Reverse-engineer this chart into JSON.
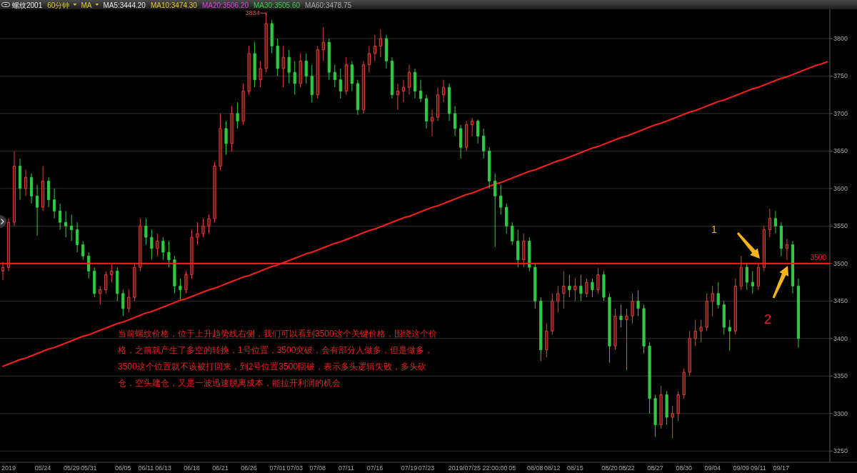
{
  "chart_data": {
    "type": "candlestick",
    "title": "螺纹2001",
    "subtitle": "60分钟",
    "annotations": [
      "当前螺纹价格，位于上升趋势线右侧，我们可以看到3500这个关键价格，围绕这个价格，之前就产生了多空的转换，1号位置，3500突破，会有部分人做多，但是做多，3500这个位置就不该被打回来，到2号位置3500回破，表示多头逻辑失败，多头砍仓，空头建仓，又是一波迅速脱离成本，能拉开利润的机会",
      "MA",
      "MA5:3444.20",
      "MA10:3474.30",
      "MA20:3506.20",
      "MA30:3505.60",
      "MA60:3478.75",
      "1",
      "2",
      "3834"
    ],
    "categories": [
      null,
      "2019",
      null,
      null,
      null,
      null,
      null,
      "05/24",
      null,
      null,
      null,
      null,
      "05/29",
      null,
      null,
      "05/31",
      null,
      null,
      null,
      null,
      null,
      "06/05",
      null,
      null,
      null,
      "06/11",
      null,
      null,
      "06/13",
      null,
      null,
      null,
      null,
      "06/18",
      null,
      null,
      null,
      null,
      "06/21",
      null,
      null,
      null,
      null,
      "06/26",
      null,
      null,
      null,
      null,
      "07/01",
      null,
      null,
      "07/03",
      null,
      null,
      null,
      "07/08",
      null,
      null,
      null,
      null,
      "07/11",
      null,
      null,
      null,
      null,
      "07/16",
      null,
      null,
      null,
      null,
      null,
      "07/19",
      null,
      null,
      "07/23",
      null,
      null,
      null,
      null,
      null,
      null,
      null,
      null,
      "2019/07/25 22:00:00",
      null,
      null,
      null,
      null,
      null,
      "05",
      null,
      null,
      null,
      "08/08",
      null,
      null,
      "08/12",
      null,
      null,
      null,
      "08/15",
      null,
      null,
      null,
      null,
      null,
      "08/20",
      null,
      null,
      "08/22",
      null,
      null,
      null,
      null,
      "08/27",
      null,
      null,
      null,
      null,
      "08/30",
      null,
      null,
      null,
      null,
      "09/04",
      null,
      null,
      null,
      null,
      "09/09",
      null,
      null,
      "09/11",
      null,
      null,
      null,
      "09/17",
      null,
      null,
      null,
      null,
      null,
      null,
      null,
      null
    ],
    "ohlc": [
      [
        3490,
        3502,
        3478,
        3495
      ],
      [
        3495,
        3560,
        3490,
        3555
      ],
      [
        3555,
        3650,
        3550,
        3630
      ],
      [
        3630,
        3640,
        3585,
        3600
      ],
      [
        3600,
        3625,
        3590,
        3615
      ],
      [
        3615,
        3620,
        3580,
        3590
      ],
      [
        3590,
        3605,
        3537,
        3575
      ],
      [
        3575,
        3630,
        3570,
        3610
      ],
      [
        3610,
        3615,
        3575,
        3585
      ],
      [
        3585,
        3600,
        3560,
        3570
      ],
      [
        3570,
        3580,
        3545,
        3555
      ],
      [
        3555,
        3570,
        3535,
        3550
      ],
      [
        3550,
        3565,
        3530,
        3545
      ],
      [
        3545,
        3555,
        3515,
        3525
      ],
      [
        3525,
        3530,
        3505,
        3510
      ],
      [
        3510,
        3515,
        3480,
        3490
      ],
      [
        3490,
        3495,
        3455,
        3460
      ],
      [
        3460,
        3470,
        3445,
        3465
      ],
      [
        3465,
        3490,
        3460,
        3485
      ],
      [
        3485,
        3500,
        3475,
        3490
      ],
      [
        3490,
        3495,
        3450,
        3460
      ],
      [
        3460,
        3465,
        3430,
        3440
      ],
      [
        3440,
        3465,
        3435,
        3455
      ],
      [
        3455,
        3500,
        3450,
        3495
      ],
      [
        3495,
        3560,
        3490,
        3550
      ],
      [
        3550,
        3560,
        3525,
        3535
      ],
      [
        3535,
        3545,
        3505,
        3520
      ],
      [
        3520,
        3540,
        3510,
        3530
      ],
      [
        3530,
        3535,
        3505,
        3515
      ],
      [
        3515,
        3530,
        3495,
        3505
      ],
      [
        3505,
        3510,
        3460,
        3470
      ],
      [
        3470,
        3480,
        3452,
        3465
      ],
      [
        3465,
        3490,
        3460,
        3485
      ],
      [
        3485,
        3545,
        3480,
        3535
      ],
      [
        3535,
        3555,
        3525,
        3540
      ],
      [
        3540,
        3560,
        3535,
        3550
      ],
      [
        3550,
        3565,
        3540,
        3560
      ],
      [
        3560,
        3635,
        3555,
        3630
      ],
      [
        3630,
        3700,
        3625,
        3680
      ],
      [
        3680,
        3690,
        3645,
        3660
      ],
      [
        3660,
        3710,
        3650,
        3700
      ],
      [
        3700,
        3715,
        3680,
        3690
      ],
      [
        3690,
        3740,
        3685,
        3730
      ],
      [
        3730,
        3790,
        3725,
        3780
      ],
      [
        3780,
        3795,
        3735,
        3745
      ],
      [
        3745,
        3770,
        3735,
        3760
      ],
      [
        3760,
        3834,
        3755,
        3820
      ],
      [
        3820,
        3825,
        3780,
        3790
      ],
      [
        3790,
        3800,
        3750,
        3760
      ],
      [
        3760,
        3790,
        3735,
        3775
      ],
      [
        3775,
        3785,
        3740,
        3755
      ],
      [
        3755,
        3770,
        3725,
        3740
      ],
      [
        3740,
        3780,
        3735,
        3770
      ],
      [
        3770,
        3780,
        3740,
        3750
      ],
      [
        3750,
        3765,
        3715,
        3725
      ],
      [
        3725,
        3790,
        3720,
        3785
      ],
      [
        3785,
        3815,
        3770,
        3795
      ],
      [
        3795,
        3800,
        3745,
        3755
      ],
      [
        3755,
        3765,
        3735,
        3745
      ],
      [
        3745,
        3760,
        3720,
        3730
      ],
      [
        3730,
        3775,
        3725,
        3765
      ],
      [
        3765,
        3770,
        3730,
        3740
      ],
      [
        3740,
        3745,
        3698,
        3705
      ],
      [
        3705,
        3770,
        3700,
        3765
      ],
      [
        3765,
        3790,
        3755,
        3780
      ],
      [
        3780,
        3805,
        3770,
        3790
      ],
      [
        3790,
        3812,
        3775,
        3800
      ],
      [
        3800,
        3805,
        3760,
        3770
      ],
      [
        3770,
        3775,
        3720,
        3725
      ],
      [
        3725,
        3740,
        3705,
        3730
      ],
      [
        3730,
        3745,
        3715,
        3735
      ],
      [
        3735,
        3765,
        3725,
        3755
      ],
      [
        3755,
        3760,
        3720,
        3730
      ],
      [
        3730,
        3745,
        3715,
        3720
      ],
      [
        3720,
        3725,
        3680,
        3690
      ],
      [
        3690,
        3705,
        3670,
        3695
      ],
      [
        3695,
        3735,
        3690,
        3725
      ],
      [
        3725,
        3745,
        3715,
        3735
      ],
      [
        3735,
        3740,
        3690,
        3700
      ],
      [
        3700,
        3710,
        3670,
        3680
      ],
      [
        3680,
        3685,
        3640,
        3655
      ],
      [
        3655,
        3690,
        3650,
        3685
      ],
      [
        3685,
        3694,
        3670,
        3690
      ],
      [
        3690,
        3692,
        3660,
        3670
      ],
      [
        3670,
        3680,
        3640,
        3650
      ],
      [
        3650,
        3655,
        3600,
        3610
      ],
      [
        3610,
        3620,
        3522,
        3590
      ],
      [
        3590,
        3605,
        3565,
        3575
      ],
      [
        3575,
        3580,
        3540,
        3550
      ],
      [
        3550,
        3555,
        3525,
        3530
      ],
      [
        3530,
        3545,
        3495,
        3505
      ],
      [
        3505,
        3540,
        3495,
        3530
      ],
      [
        3530,
        3535,
        3490,
        3495
      ],
      [
        3495,
        3500,
        3440,
        3450
      ],
      [
        3450,
        3455,
        3370,
        3385
      ],
      [
        3385,
        3420,
        3375,
        3410
      ],
      [
        3410,
        3460,
        3405,
        3450
      ],
      [
        3450,
        3470,
        3435,
        3460
      ],
      [
        3460,
        3490,
        3440,
        3470
      ],
      [
        3470,
        3485,
        3455,
        3465
      ],
      [
        3465,
        3480,
        3450,
        3470
      ],
      [
        3470,
        3485,
        3450,
        3460
      ],
      [
        3460,
        3480,
        3455,
        3475
      ],
      [
        3475,
        3480,
        3455,
        3465
      ],
      [
        3465,
        3494,
        3460,
        3485
      ],
      [
        3485,
        3490,
        3450,
        3455
      ],
      [
        3455,
        3460,
        3368,
        3390
      ],
      [
        3390,
        3440,
        3385,
        3430
      ],
      [
        3430,
        3445,
        3415,
        3425
      ],
      [
        3425,
        3440,
        3358,
        3430
      ],
      [
        3430,
        3460,
        3420,
        3450
      ],
      [
        3450,
        3464,
        3430,
        3440
      ],
      [
        3440,
        3445,
        3380,
        3390
      ],
      [
        3390,
        3395,
        3300,
        3320
      ],
      [
        3320,
        3325,
        3269,
        3285
      ],
      [
        3285,
        3337,
        3280,
        3325
      ],
      [
        3325,
        3330,
        3285,
        3295
      ],
      [
        3295,
        3310,
        3267,
        3300
      ],
      [
        3300,
        3330,
        3290,
        3325
      ],
      [
        3325,
        3360,
        3320,
        3355
      ],
      [
        3355,
        3410,
        3350,
        3400
      ],
      [
        3400,
        3425,
        3390,
        3410
      ],
      [
        3410,
        3425,
        3395,
        3415
      ],
      [
        3415,
        3460,
        3410,
        3450
      ],
      [
        3450,
        3470,
        3430,
        3460
      ],
      [
        3460,
        3475,
        3440,
        3445
      ],
      [
        3445,
        3450,
        3405,
        3415
      ],
      [
        3415,
        3425,
        3384,
        3410
      ],
      [
        3410,
        3480,
        3405,
        3470
      ],
      [
        3470,
        3510,
        3465,
        3495
      ],
      [
        3495,
        3500,
        3465,
        3475
      ],
      [
        3475,
        3490,
        3460,
        3470
      ],
      [
        3470,
        3500,
        3465,
        3495
      ],
      [
        3495,
        3550,
        3490,
        3545
      ],
      [
        3545,
        3573,
        3535,
        3560
      ],
      [
        3560,
        3570,
        3540,
        3550
      ],
      [
        3550,
        3555,
        3510,
        3520
      ],
      [
        3520,
        3533,
        3505,
        3525
      ],
      [
        3525,
        3530,
        3460,
        3470
      ],
      [
        3470,
        3480,
        3388,
        3400
      ],
      null,
      null,
      null,
      null,
      null
    ],
    "series": [
      {
        "type": "line",
        "color": "#ff1f1f",
        "values": [
          3363,
          3366,
          3369,
          3372,
          3374,
          3377,
          3380,
          3383,
          3386,
          3388,
          3391,
          3394,
          3397,
          3400,
          3403,
          3405,
          3408,
          3411,
          3414,
          3417,
          3420,
          3422,
          3425,
          3428,
          3431,
          3434,
          3436,
          3439,
          3442,
          3445,
          3448,
          3451,
          3453,
          3456,
          3459,
          3462,
          3465,
          3467,
          3470,
          3473,
          3476,
          3479,
          3482,
          3484,
          3487,
          3490,
          3493,
          3496,
          3498,
          3501,
          3504,
          3507,
          3510,
          3513,
          3515,
          3518,
          3521,
          3524,
          3527,
          3529,
          3532,
          3535,
          3538,
          3541,
          3544,
          3546,
          3549,
          3552,
          3555,
          3558,
          3561,
          3563,
          3566,
          3569,
          3572,
          3575,
          3577,
          3580,
          3583,
          3586,
          3589,
          3592,
          3594,
          3597,
          3600,
          3603,
          3606,
          3608,
          3611,
          3614,
          3617,
          3620,
          3623,
          3625,
          3628,
          3631,
          3634,
          3637,
          3639,
          3642,
          3645,
          3648,
          3651,
          3654,
          3656,
          3659,
          3662,
          3665,
          3668,
          3670,
          3673,
          3676,
          3679,
          3682,
          3685,
          3687,
          3690,
          3693,
          3696,
          3699,
          3702,
          3704,
          3707,
          3710,
          3713,
          3716,
          3718,
          3721,
          3724,
          3727,
          3730,
          3733,
          3735,
          3738,
          3741,
          3744,
          3747,
          3749,
          3752,
          3755,
          3758,
          3761,
          3764,
          3766,
          3769
        ]
      }
    ],
    "ylim": [
      3235,
      3839
    ],
    "yticks": [
      3250,
      3300,
      3350,
      3400,
      3450,
      3500,
      3550,
      3600,
      3650,
      3700,
      3750,
      3800
    ],
    "ref_lines": [
      {
        "axis": "y",
        "value": 3500,
        "label": "3500",
        "color": "#ff1f1f"
      }
    ],
    "grid": "y"
  }
}
